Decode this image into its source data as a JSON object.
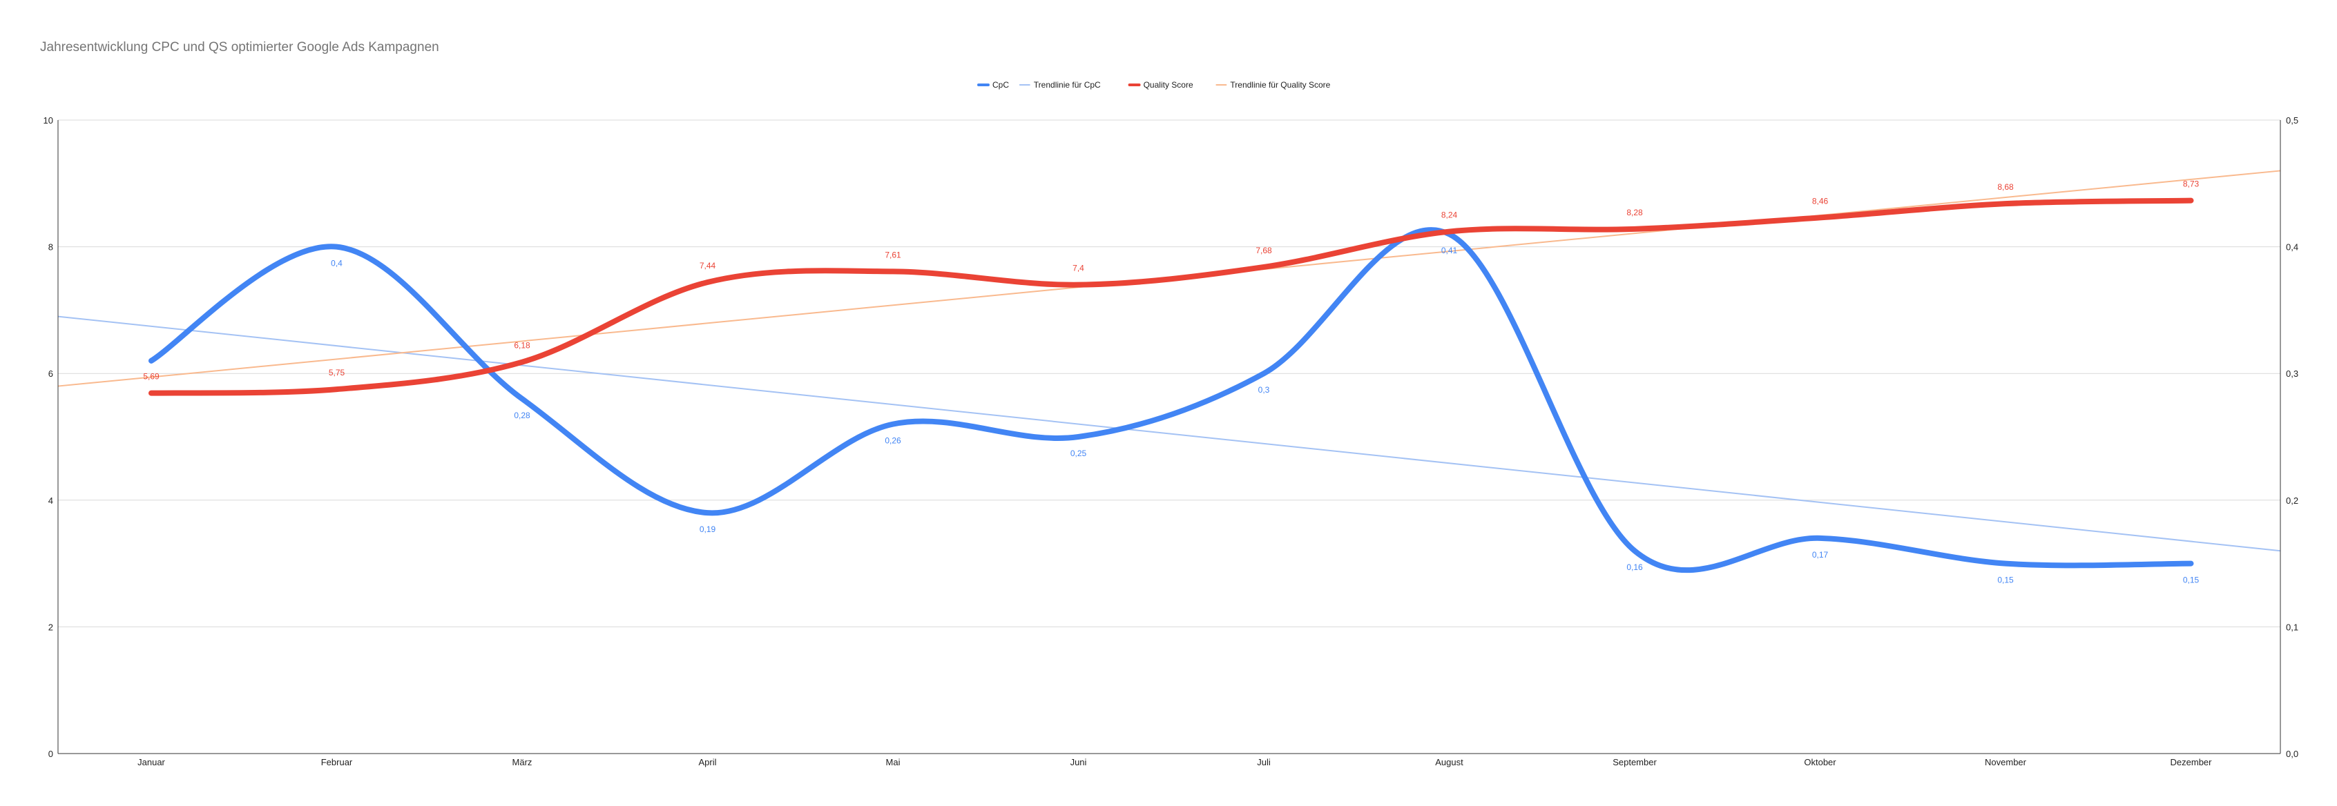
{
  "chart_data": {
    "type": "line",
    "title": "Jahresentwicklung CPC und QS optimierter Google Ads Kampagnen",
    "categories": [
      "Januar",
      "Februar",
      "März",
      "April",
      "Mai",
      "Juni",
      "Juli",
      "August",
      "September",
      "Oktober",
      "November",
      "Dezember"
    ],
    "y_left": {
      "min": 0,
      "max": 10,
      "ticks": [
        "0",
        "2",
        "4",
        "6",
        "8",
        "10"
      ]
    },
    "y_right": {
      "min": 0,
      "max": 0.5,
      "ticks": [
        "0,0",
        "0,1",
        "0,2",
        "0,3",
        "0,4",
        "0,5"
      ]
    },
    "grid": true,
    "legend_position": "top",
    "legend": [
      "CpC",
      "Trendlinie für CpC",
      "Quality Score",
      "Trendlinie für Quality Score"
    ],
    "series": [
      {
        "name": "CpC",
        "axis": "right",
        "color": "#4285f4",
        "values": [
          0.31,
          0.4,
          0.28,
          0.19,
          0.26,
          0.25,
          0.3,
          0.41,
          0.16,
          0.17,
          0.15,
          0.15
        ],
        "labels": [
          "",
          "0,4",
          "0,28",
          "0,19",
          "0,26",
          "0,25",
          "0,3",
          "0,41",
          "0,16",
          "0,17",
          "0,15",
          "0,15"
        ]
      },
      {
        "name": "Quality Score",
        "axis": "left",
        "color": "#ea4335",
        "values": [
          5.69,
          5.75,
          6.18,
          7.44,
          7.61,
          7.4,
          7.68,
          8.24,
          8.28,
          8.46,
          8.68,
          8.73
        ],
        "labels": [
          "5,69",
          "5,75",
          "6,18",
          "7,44",
          "7,61",
          "7,4",
          "7,68",
          "8,24",
          "8,28",
          "8,46",
          "8,68",
          "8,73"
        ]
      }
    ],
    "trendlines": [
      {
        "name": "Trendlinie für CpC",
        "axis": "right",
        "color": "#a4c2f4",
        "start": 0.345,
        "end": 0.16
      },
      {
        "name": "Trendlinie für Quality Score",
        "axis": "left",
        "color": "#f9b98e",
        "start": 5.8,
        "end": 9.2
      }
    ]
  }
}
